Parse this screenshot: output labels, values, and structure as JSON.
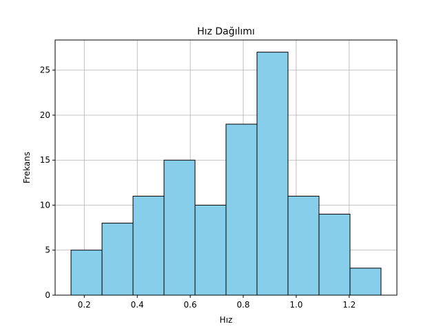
{
  "chart_data": {
    "type": "bar",
    "title": "Hız Dağılımı",
    "xlabel": "Hız",
    "ylabel": "Frekans",
    "bins": [
      [
        0.15,
        0.267
      ],
      [
        0.267,
        0.384
      ],
      [
        0.384,
        0.501
      ],
      [
        0.501,
        0.618
      ],
      [
        0.618,
        0.735
      ],
      [
        0.735,
        0.852
      ],
      [
        0.852,
        0.969
      ],
      [
        0.969,
        1.086
      ],
      [
        1.086,
        1.203
      ],
      [
        1.203,
        1.32
      ]
    ],
    "values": [
      5,
      8,
      11,
      15,
      10,
      19,
      27,
      11,
      9,
      3
    ],
    "xlim": [
      0.09,
      1.38
    ],
    "ylim": [
      0,
      28.35
    ],
    "xticks": [
      0.2,
      0.4,
      0.6,
      0.8,
      1.0,
      1.2
    ],
    "xtick_labels": [
      "0.2",
      "0.4",
      "0.6",
      "0.8",
      "1.0",
      "1.2"
    ],
    "yticks": [
      0,
      5,
      10,
      15,
      20,
      25
    ],
    "ytick_labels": [
      "0",
      "5",
      "10",
      "15",
      "20",
      "25"
    ],
    "grid": true,
    "colors": {
      "bar_fill": "#87ceeb",
      "bar_edge": "#000000",
      "grid": "#b0b0b0"
    }
  }
}
